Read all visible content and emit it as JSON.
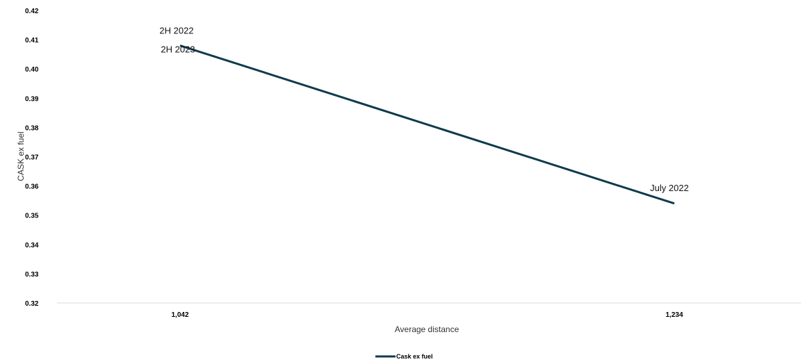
{
  "chart_data": {
    "type": "line",
    "title": "",
    "xlabel": "Average distance",
    "ylabel": "CASK ex fuel",
    "ylim": [
      0.32,
      0.42
    ],
    "yticks": [
      "0.32",
      "0.33",
      "0.34",
      "0.35",
      "0.36",
      "0.37",
      "0.38",
      "0.39",
      "0.40",
      "0.41",
      "0.42"
    ],
    "categories": [
      "1,042",
      "1,234"
    ],
    "series": [
      {
        "name": "Cask ex fuel",
        "values": [
          0.408,
          0.354
        ],
        "color": "#0f3b4c"
      }
    ],
    "annotations": [
      {
        "text": "2H 2022",
        "category_index": 0
      },
      {
        "text": "2H 2023",
        "category_index": 0
      },
      {
        "text": "July 2022",
        "category_index": 1
      }
    ],
    "grid": false,
    "legend_position": "bottom-center"
  }
}
